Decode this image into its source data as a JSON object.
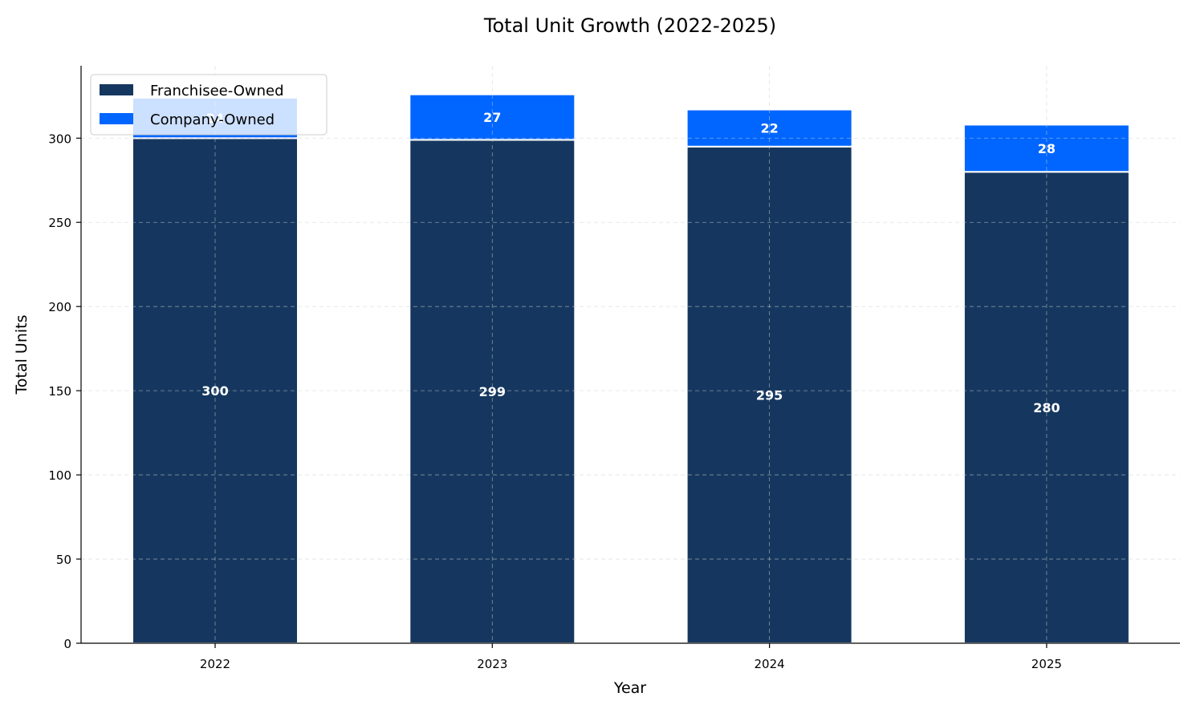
{
  "chart_data": {
    "type": "bar",
    "stacked": true,
    "title": "Total Unit Growth (2022-2025)",
    "xlabel": "Year",
    "ylabel": "Total Units",
    "categories": [
      "2022",
      "2023",
      "2024",
      "2025"
    ],
    "series": [
      {
        "name": "Franchisee-Owned",
        "values": [
          300,
          299,
          295,
          280
        ],
        "color": "#15375f"
      },
      {
        "name": "Company-Owned",
        "values": [
          24,
          27,
          22,
          28
        ],
        "color": "#0066ff"
      }
    ],
    "ylim": [
      0,
      343
    ],
    "yticks": [
      0,
      50,
      100,
      150,
      200,
      250,
      300
    ],
    "grid": true,
    "legend": "upper-left"
  }
}
